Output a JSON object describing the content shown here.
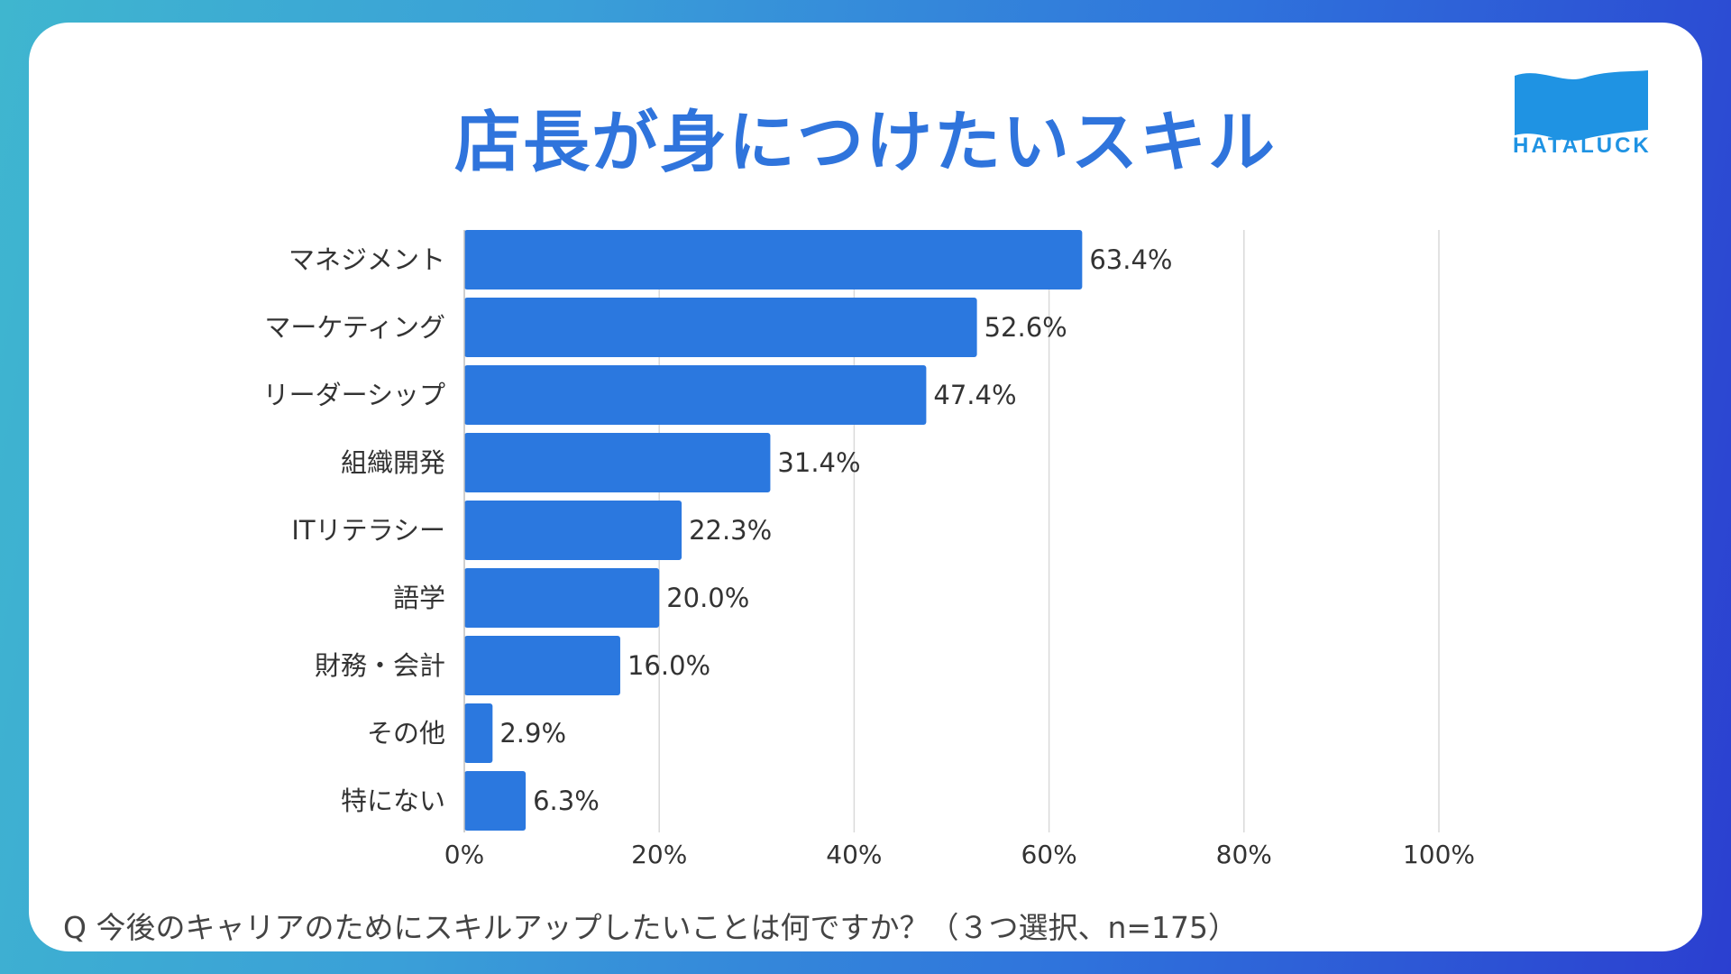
{
  "title": "店長が身につけたいスキル",
  "logo": {
    "text": "HATALUCK"
  },
  "question": "Q  今後のキャリアのためにスキルアップしたいことは何ですか？（３つ選択、n=175）",
  "colors": {
    "bar": "#2b78df",
    "grid": "#d9d9d9",
    "title": "#2f74dc",
    "logo": "#1f93e3"
  },
  "chart_data": {
    "type": "bar",
    "orientation": "horizontal",
    "categories": [
      "マネジメント",
      "マーケティング",
      "リーダーシップ",
      "組織開発",
      "ITリテラシー",
      "語学",
      "財務・会計",
      "その他",
      "特にない"
    ],
    "values": [
      63.4,
      52.6,
      47.4,
      31.4,
      22.3,
      20.0,
      16.0,
      2.9,
      6.3
    ],
    "value_labels": [
      "63.4%",
      "52.6%",
      "47.4%",
      "31.4%",
      "22.3%",
      "20.0%",
      "16.0%",
      "2.9%",
      "6.3%"
    ],
    "xlim": [
      0,
      100
    ],
    "xticks": [
      0,
      20,
      40,
      60,
      80,
      100
    ],
    "xtick_labels": [
      "0%",
      "20%",
      "40%",
      "60%",
      "80%",
      "100%"
    ],
    "grid": true
  }
}
